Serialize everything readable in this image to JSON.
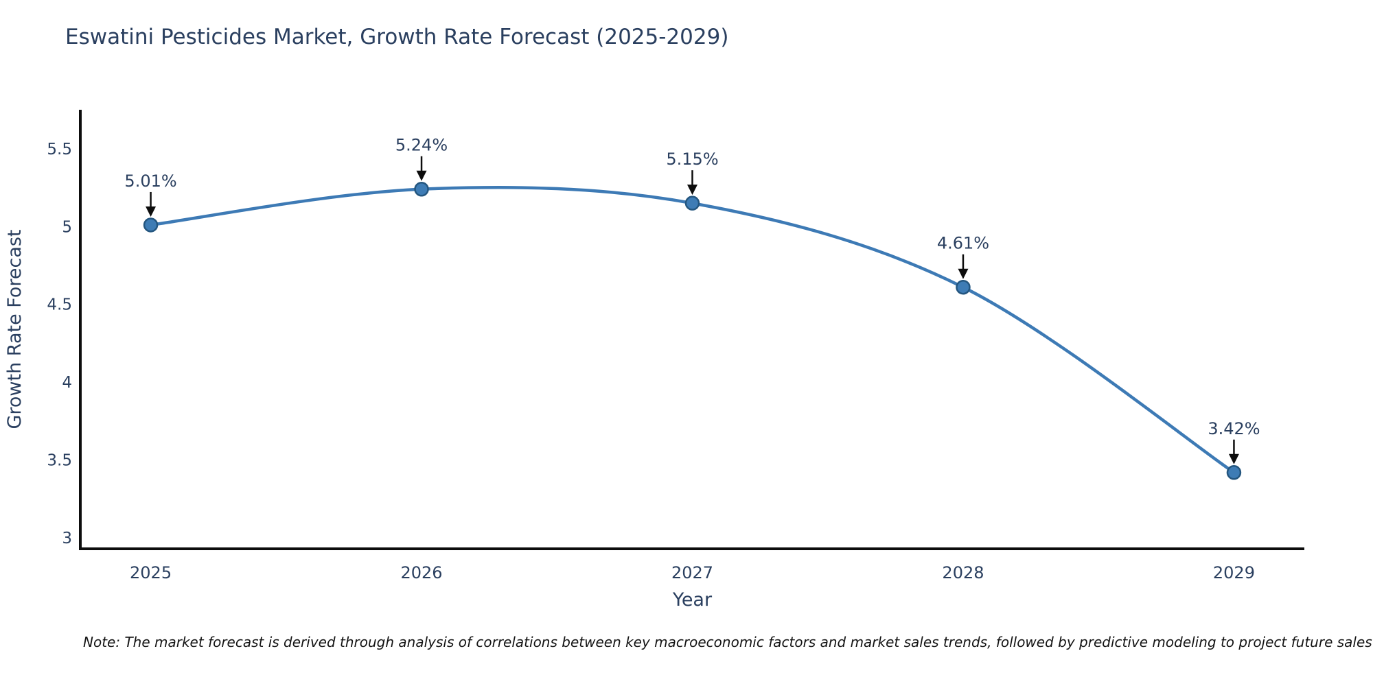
{
  "title": "Eswatini Pesticides Market, Growth Rate Forecast (2025-2029)",
  "footnote": "Note: The market forecast is derived through analysis of correlations between key macroeconomic factors and market sales trends, followed by predictive modeling to project future sales",
  "chart_data": {
    "type": "line",
    "title": "Eswatini Pesticides Market, Growth Rate Forecast (2025-2029)",
    "xlabel": "Year",
    "ylabel": "Growth Rate Forecast",
    "x": [
      2025,
      2026,
      2027,
      2028,
      2029
    ],
    "values": [
      5.01,
      5.24,
      5.15,
      4.61,
      3.42
    ],
    "point_labels": [
      "5.01%",
      "5.24%",
      "5.15%",
      "4.61%",
      "3.42%"
    ],
    "xticks": [
      "2025",
      "2026",
      "2027",
      "2028",
      "2029"
    ],
    "yticks": [
      3,
      3.5,
      4,
      4.5,
      5,
      5.5
    ],
    "ytick_labels": [
      "3",
      "3.5",
      "4",
      "4.5",
      "5",
      "5.5"
    ],
    "xlim": [
      2024.74,
      2029.26
    ],
    "ylim": [
      2.93,
      5.75
    ],
    "grid": false,
    "legend": "none",
    "line_shape": "spline",
    "annotation_style": "value label with downward black arrow to each marker",
    "colors": {
      "line": "#3d7ab5",
      "marker_fill": "#3e7cb5",
      "marker_edge": "#24567f",
      "arrow": "#0d0d0d",
      "axis": "#0d0d0d",
      "text": "#2a3f5f",
      "note_text": "#141414",
      "background": "#ffffff"
    }
  }
}
